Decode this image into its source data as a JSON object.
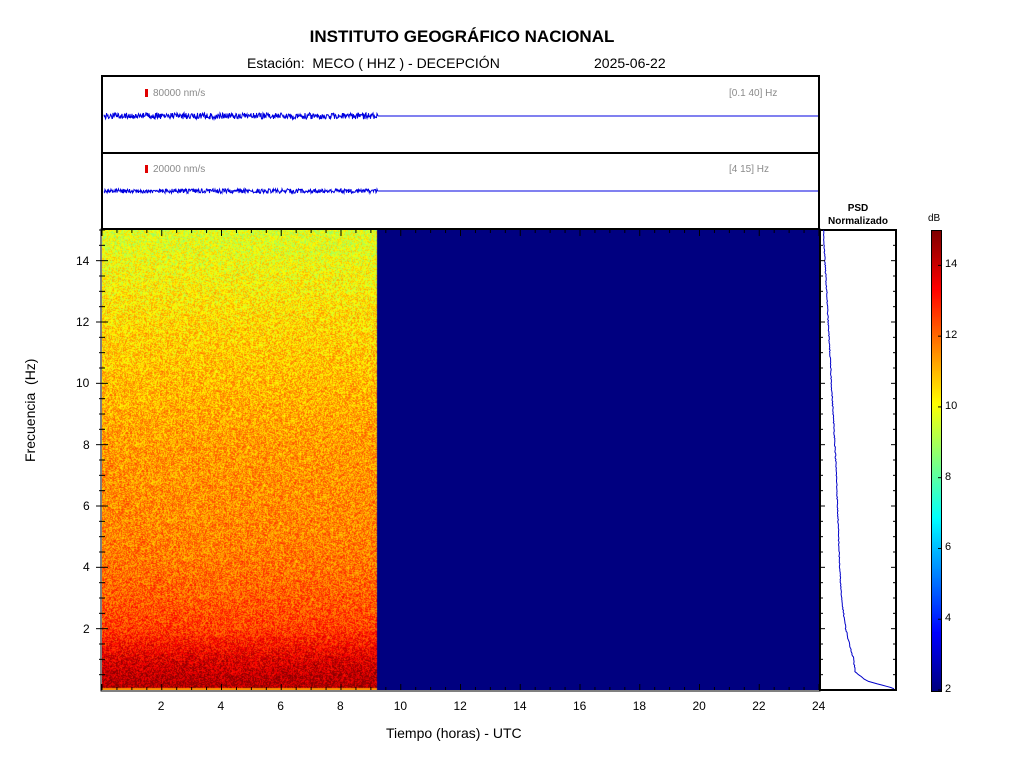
{
  "title": "INSTITUTO GEOGRÁFICO NACIONAL",
  "subtitle": {
    "station": "Estación:  MECO ( HHZ ) - DECEPCIÓN",
    "date": "2025-06-22"
  },
  "traces": [
    {
      "scale_label": "80000 nm/s",
      "band_label": "[0.1 40] Hz",
      "color": "#0000e0",
      "data_end_hour": 9.2
    },
    {
      "scale_label": "20000 nm/s",
      "band_label": "[4 15] Hz",
      "color": "#0000e0",
      "data_end_hour": 9.2
    }
  ],
  "psd": {
    "title_line1": "PSD",
    "title_line2": "Normalizado",
    "color": "#0000c8"
  },
  "colorbar": {
    "unit": "dB",
    "min": 2,
    "max": 15,
    "ticks": [
      2,
      4,
      6,
      8,
      10,
      12,
      14
    ],
    "colormap": "jet"
  },
  "chart_data": {
    "type": "heatmap",
    "xlabel": "Tiempo (horas) - UTC",
    "ylabel": "Frecuencia  (Hz)",
    "xlim": [
      0,
      24
    ],
    "ylim": [
      0,
      15
    ],
    "xticks": [
      2,
      4,
      6,
      8,
      10,
      12,
      14,
      16,
      18,
      20,
      22,
      24
    ],
    "yticks": [
      2,
      4,
      6,
      8,
      10,
      12,
      14
    ],
    "data_end_hour": 9.2,
    "nodata_db": 2,
    "power_db_vs_frequency": {
      "frequency_hz": [
        0.1,
        0.5,
        1,
        1.5,
        2,
        3,
        4,
        5,
        6,
        7,
        8,
        9,
        10,
        11,
        12,
        13,
        14,
        15
      ],
      "db": [
        14.5,
        14.2,
        13.8,
        13.2,
        12.6,
        12.2,
        11.9,
        11.7,
        11.6,
        11.5,
        11.4,
        11.2,
        11.0,
        10.8,
        10.6,
        10.3,
        10.0,
        9.7
      ]
    },
    "psd_normalized": {
      "frequency_hz": [
        0.05,
        0.3,
        0.6,
        1,
        1.5,
        2,
        2.5,
        3,
        4,
        5,
        6,
        7,
        8,
        9,
        10,
        11,
        12,
        13,
        14,
        15
      ],
      "value": [
        1.0,
        0.62,
        0.46,
        0.44,
        0.38,
        0.33,
        0.3,
        0.27,
        0.245,
        0.23,
        0.215,
        0.2,
        0.18,
        0.155,
        0.13,
        0.11,
        0.085,
        0.065,
        0.04,
        0.02
      ]
    }
  }
}
